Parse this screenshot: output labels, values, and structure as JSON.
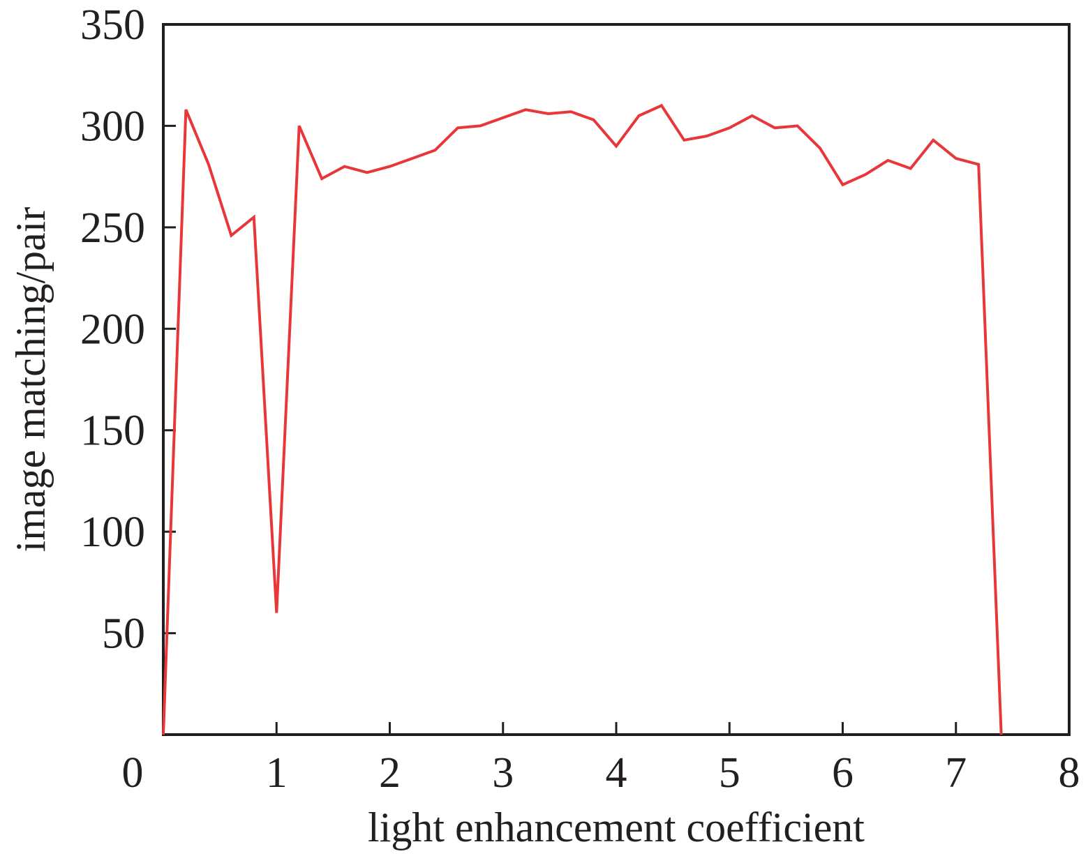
{
  "chart_data": {
    "type": "line",
    "title": "",
    "xlabel": "light enhancement coefficient",
    "ylabel": "image matching/pair",
    "xlim": [
      0,
      8
    ],
    "ylim": [
      0,
      350
    ],
    "xticks": [
      0,
      1,
      2,
      3,
      4,
      5,
      6,
      7,
      8
    ],
    "yticks": [
      50,
      100,
      150,
      200,
      250,
      300,
      350
    ],
    "xtick_labels": [
      "0",
      "1",
      "2",
      "3",
      "4",
      "5",
      "6",
      "7",
      "8"
    ],
    "ytick_labels": [
      "50",
      "100",
      "150",
      "200",
      "250",
      "300",
      "350"
    ],
    "grid": false,
    "legend": "none",
    "series": [
      {
        "color": "#e8373a",
        "x": [
          0,
          0.2,
          0.4,
          0.6,
          0.8,
          1.0,
          1.2,
          1.4,
          1.6,
          1.8,
          2.0,
          2.2,
          2.4,
          2.6,
          2.8,
          3.0,
          3.2,
          3.4,
          3.6,
          3.8,
          4.0,
          4.2,
          4.4,
          4.6,
          4.8,
          5.0,
          5.2,
          5.4,
          5.6,
          5.8,
          6.0,
          6.2,
          6.4,
          6.6,
          6.8,
          7.0,
          7.2,
          7.4
        ],
        "y": [
          0,
          308,
          281,
          246,
          255,
          60,
          300,
          274,
          280,
          277,
          280,
          284,
          288,
          299,
          300,
          304,
          308,
          306,
          307,
          303,
          290,
          305,
          310,
          293,
          295,
          299,
          305,
          299,
          300,
          289,
          271,
          276,
          283,
          279,
          293,
          284,
          281,
          0
        ]
      }
    ]
  }
}
